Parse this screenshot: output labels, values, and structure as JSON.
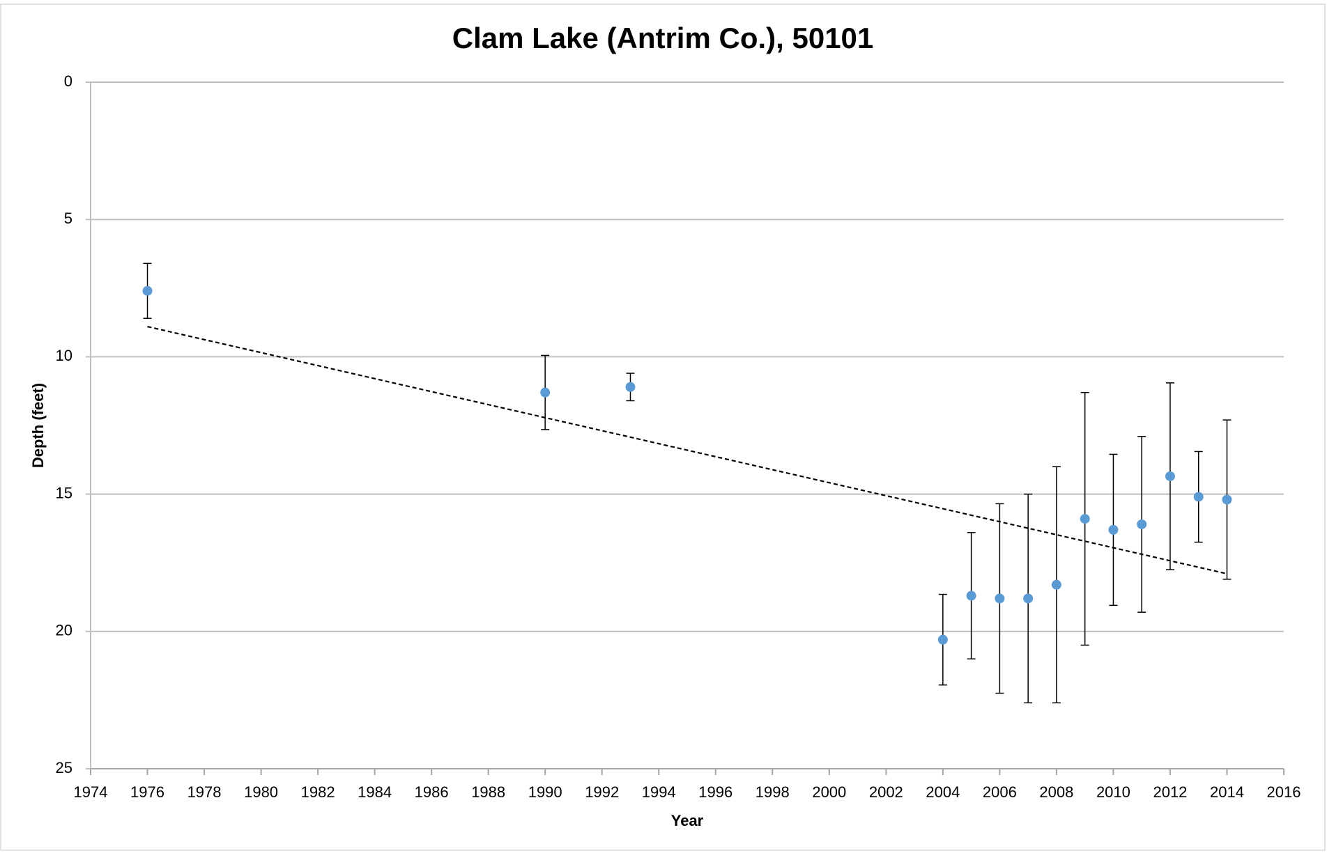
{
  "chart_data": {
    "type": "scatter",
    "title": "Clam Lake (Antrim Co.), 50101",
    "x_label": "Year",
    "y_label": "Depth (feet)",
    "x": [
      1976,
      1990,
      1993,
      2004,
      2005,
      2006,
      2007,
      2008,
      2009,
      2010,
      2011,
      2012,
      2013,
      2014
    ],
    "values": [
      7.6,
      11.3,
      11.1,
      20.3,
      18.7,
      18.8,
      18.8,
      18.3,
      15.9,
      16.3,
      16.1,
      14.35,
      15.1,
      15.2
    ],
    "errors": [
      1.0,
      1.35,
      0.5,
      1.65,
      2.3,
      3.45,
      3.8,
      4.3,
      4.6,
      2.75,
      3.2,
      3.4,
      1.65,
      2.9
    ],
    "color": "#5b9bd5",
    "trendline": {
      "x": [
        1976,
        2014
      ],
      "values": [
        8.9,
        17.9
      ]
    },
    "xlim": [
      1974,
      2016
    ],
    "xticks": [
      1974,
      1976,
      1978,
      1980,
      1982,
      1984,
      1986,
      1988,
      1990,
      1992,
      1994,
      1996,
      1998,
      2000,
      2002,
      2004,
      2006,
      2008,
      2010,
      2012,
      2014,
      2016
    ],
    "ylim": [
      0,
      25
    ],
    "yticks": [
      0,
      5,
      10,
      15,
      20,
      25
    ],
    "y_inverted": true,
    "grid": true
  }
}
